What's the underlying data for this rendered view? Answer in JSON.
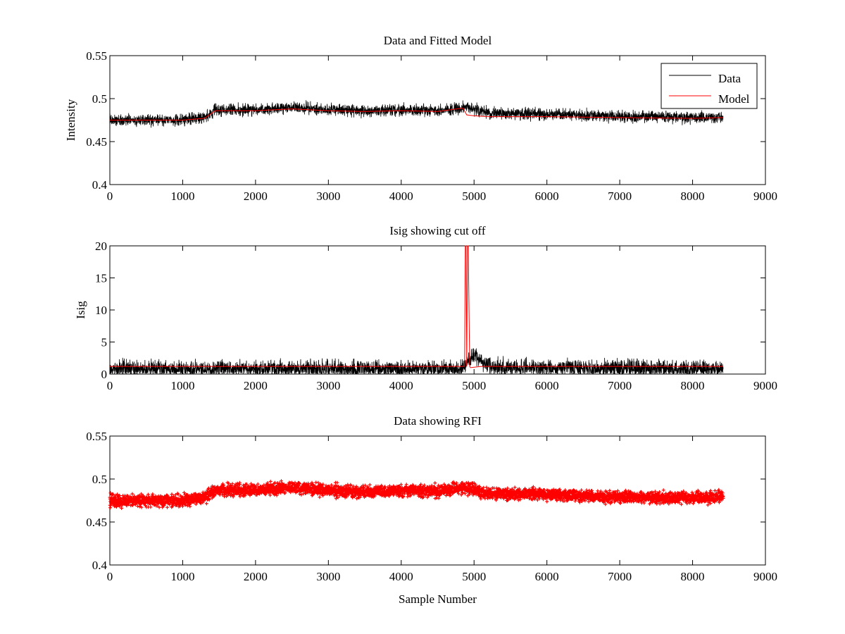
{
  "figure": {
    "background": "#ffffff"
  },
  "chart_data": [
    {
      "type": "line",
      "title": "Data and Fitted Model",
      "xlabel": "",
      "ylabel": "Intensity",
      "xlim": [
        0,
        9000
      ],
      "ylim": [
        0.4,
        0.55
      ],
      "xticks": [
        0,
        1000,
        2000,
        3000,
        4000,
        5000,
        6000,
        7000,
        8000,
        9000
      ],
      "xtick_labels": [
        "0",
        "1000",
        "2000",
        "3000",
        "4000",
        "5000",
        "6000",
        "7000",
        "8000",
        "9000"
      ],
      "yticks": [
        0.4,
        0.45,
        0.5,
        0.55
      ],
      "ytick_labels": [
        "0.4",
        "0.45",
        "0.5",
        "0.55"
      ],
      "legend": {
        "position": "top-right",
        "entries": [
          "Data",
          "Model"
        ]
      },
      "n_samples": 8420,
      "series": [
        {
          "name": "Data",
          "color": "#000000",
          "style": "noisy-line",
          "baseline": {
            "x": [
              0,
              1000,
              1300,
              1450,
              2000,
              2500,
              3000,
              3500,
              4000,
              4500,
              4850,
              5000,
              5200,
              6000,
              7000,
              8000,
              8420
            ],
            "y": [
              0.475,
              0.475,
              0.478,
              0.487,
              0.487,
              0.49,
              0.487,
              0.485,
              0.487,
              0.486,
              0.49,
              0.488,
              0.483,
              0.482,
              0.479,
              0.478,
              0.479
            ]
          },
          "noise_amplitude": 0.006
        },
        {
          "name": "Model",
          "color": "#ff0000",
          "style": "line",
          "x": [
            0,
            1000,
            1300,
            1450,
            2000,
            2500,
            3000,
            3500,
            4000,
            4500,
            4850,
            4880,
            4900,
            5000,
            5200,
            6000,
            7000,
            8000,
            8420
          ],
          "y": [
            0.475,
            0.475,
            0.477,
            0.486,
            0.486,
            0.488,
            0.486,
            0.485,
            0.486,
            0.485,
            0.489,
            0.484,
            0.481,
            0.48,
            0.479,
            0.479,
            0.478,
            0.477,
            0.478
          ]
        }
      ]
    },
    {
      "type": "line",
      "title": "Isig showing cut off",
      "xlabel": "",
      "ylabel": "Isig",
      "xlim": [
        0,
        9000
      ],
      "ylim": [
        0,
        20
      ],
      "xticks": [
        0,
        1000,
        2000,
        3000,
        4000,
        5000,
        6000,
        7000,
        8000,
        9000
      ],
      "xtick_labels": [
        "0",
        "1000",
        "2000",
        "3000",
        "4000",
        "5000",
        "6000",
        "7000",
        "8000",
        "9000"
      ],
      "yticks": [
        0,
        5,
        10,
        15,
        20
      ],
      "ytick_labels": [
        "0",
        "5",
        "10",
        "15",
        "20"
      ],
      "n_samples": 8420,
      "series": [
        {
          "name": "Isig",
          "color": "#000000",
          "style": "noisy-line",
          "baseline": {
            "x": [
              0,
              4800,
              4850,
              4950,
              5000,
              5100,
              5300,
              8420
            ],
            "y": [
              0.8,
              0.8,
              0.9,
              2.5,
              2.8,
              1.8,
              1.0,
              0.8
            ]
          },
          "noise_amplitude": 1.2,
          "clip_min": 0
        },
        {
          "name": "cut off",
          "color": "#ff0000",
          "style": "line",
          "x": [
            0,
            1000,
            2000,
            3000,
            4000,
            4870,
            4880,
            4890,
            4900,
            4910,
            4920,
            4940,
            4950,
            5100,
            6000,
            7000,
            8000,
            8420
          ],
          "y": [
            1.2,
            1.2,
            1.2,
            1.2,
            1.2,
            1.2,
            20,
            20,
            1.2,
            20,
            20,
            1.2,
            1.0,
            1.2,
            1.2,
            1.2,
            1.2,
            1.2
          ]
        }
      ]
    },
    {
      "type": "scatter",
      "title": "Data showing RFI",
      "xlabel": "Sample Number",
      "ylabel": "",
      "xlim": [
        0,
        9000
      ],
      "ylim": [
        0.4,
        0.55
      ],
      "xticks": [
        0,
        1000,
        2000,
        3000,
        4000,
        5000,
        6000,
        7000,
        8000,
        9000
      ],
      "xtick_labels": [
        "0",
        "1000",
        "2000",
        "3000",
        "4000",
        "5000",
        "6000",
        "7000",
        "8000",
        "9000"
      ],
      "yticks": [
        0.4,
        0.45,
        0.5,
        0.55
      ],
      "ytick_labels": [
        "0.4",
        "0.45",
        "0.5",
        "0.55"
      ],
      "n_samples": 8420,
      "series": [
        {
          "name": "Data",
          "color": "#ff0000",
          "style": "markers",
          "marker": "+",
          "baseline": {
            "x": [
              0,
              1000,
              1300,
              1450,
              2000,
              2500,
              3000,
              3500,
              4000,
              4500,
              4850,
              5000,
              5200,
              6000,
              7000,
              8000,
              8420
            ],
            "y": [
              0.475,
              0.475,
              0.478,
              0.487,
              0.487,
              0.49,
              0.487,
              0.485,
              0.487,
              0.486,
              0.49,
              0.488,
              0.483,
              0.482,
              0.479,
              0.478,
              0.479
            ]
          },
          "noise_amplitude": 0.006
        }
      ]
    }
  ]
}
